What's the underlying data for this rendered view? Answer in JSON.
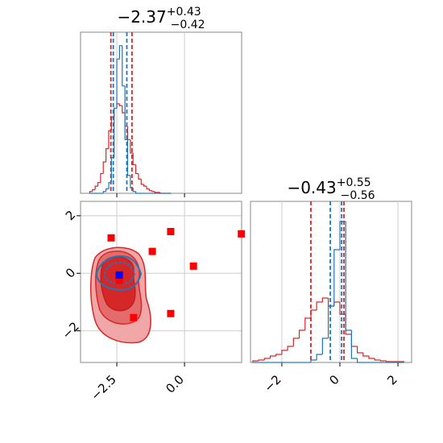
{
  "chart_data": [
    {
      "type": "histogram",
      "title": "−2.37",
      "title_sup": "+0.43",
      "title_sub": "−0.42",
      "xlim": [
        -3.84,
        2.11
      ],
      "ylim": [
        0,
        180
      ],
      "xticks": [
        -2.5,
        0
      ],
      "tick_labels": false,
      "grid": true,
      "bins": [
        -3.5,
        -3.4,
        -3.3,
        -3.2,
        -3.1,
        -3.0,
        -2.9,
        -2.8,
        -2.7,
        -2.6,
        -2.5,
        -2.4,
        -2.3,
        -2.2,
        -2.1,
        -2.0,
        -1.9,
        -1.8,
        -1.7,
        -1.6,
        -1.5,
        -1.4,
        -1.3,
        -1.2,
        -1.1,
        -1.0,
        -0.9,
        -0.8,
        -0.7,
        -0.6,
        -0.5
      ],
      "series": [
        {
          "color": "#1f77b4",
          "values": [
            0,
            0,
            0,
            0,
            0,
            2,
            5,
            12,
            40,
            95,
            150,
            165,
            120,
            60,
            20,
            6,
            2,
            0,
            0,
            0,
            0,
            0,
            0,
            0,
            0,
            0,
            0,
            0,
            0,
            0
          ],
          "quantiles": [
            -2.63,
            -2.13
          ]
        },
        {
          "color": "#d62728",
          "values": [
            2,
            4,
            8,
            12,
            22,
            35,
            50,
            70,
            85,
            95,
            100,
            98,
            90,
            75,
            60,
            45,
            32,
            22,
            16,
            10,
            8,
            5,
            3,
            2,
            1,
            1,
            0,
            0,
            0,
            0
          ],
          "quantiles": [
            -2.72,
            -1.94
          ]
        }
      ]
    },
    {
      "type": "scatter",
      "xlim": [
        -3.84,
        2.11
      ],
      "ylim": [
        -3.1,
        2.5
      ],
      "xticks": [
        {
          "value": -2.5,
          "label": "−2.5"
        },
        {
          "value": 0,
          "label": "0.0"
        }
      ],
      "yticks": [
        {
          "value": -2,
          "label": "−2"
        },
        0,
        2
      ],
      "grid": true,
      "series": [
        {
          "color": "#ff0000",
          "x": [
            -2.71,
            -0.51,
            -1.19,
            0.33,
            2.1,
            -0.51,
            -1.88,
            -2.41
          ],
          "y": [
            1.23,
            1.45,
            0.76,
            0.25,
            1.37,
            -1.4,
            -1.54,
            -0.25
          ]
        },
        {
          "color": "#0000ff",
          "x": [
            -2.41
          ],
          "y": [
            -0.06
          ]
        }
      ]
    },
    {
      "type": "histogram",
      "title": "−0.43",
      "title_sup": "+0.55",
      "title_sub": "−0.56",
      "xlim": [
        -3.08,
        2.47
      ],
      "ylim": [
        0,
        200
      ],
      "xticks": [
        {
          "value": -2,
          "label": "−2"
        },
        0,
        2
      ],
      "tick_labels": true,
      "grid": true,
      "bins": [
        -3.0,
        -2.8,
        -2.6,
        -2.4,
        -2.2,
        -2.0,
        -1.8,
        -1.6,
        -1.4,
        -1.2,
        -1.0,
        -0.8,
        -0.6,
        -0.4,
        -0.2,
        0.0,
        0.2,
        0.4,
        0.6,
        0.8,
        1.0,
        1.2,
        1.4,
        1.6,
        1.8,
        2.0,
        2.2
      ],
      "series": [
        {
          "color": "#1f77b4",
          "values": [
            0,
            0,
            0,
            0,
            0,
            0,
            0,
            0,
            0,
            0,
            3,
            10,
            30,
            70,
            140,
            175,
            40,
            5,
            0,
            0,
            0,
            0,
            0,
            0,
            0,
            0
          ],
          "quantiles": [
            -0.33,
            0.06
          ]
        },
        {
          "color": "#d62728",
          "values": [
            2,
            3,
            5,
            8,
            10,
            15,
            20,
            30,
            40,
            55,
            65,
            75,
            80,
            70,
            75,
            60,
            35,
            20,
            12,
            8,
            5,
            3,
            2,
            1,
            1,
            1
          ],
          "quantiles": [
            -1.0,
            0.14
          ]
        }
      ]
    }
  ]
}
